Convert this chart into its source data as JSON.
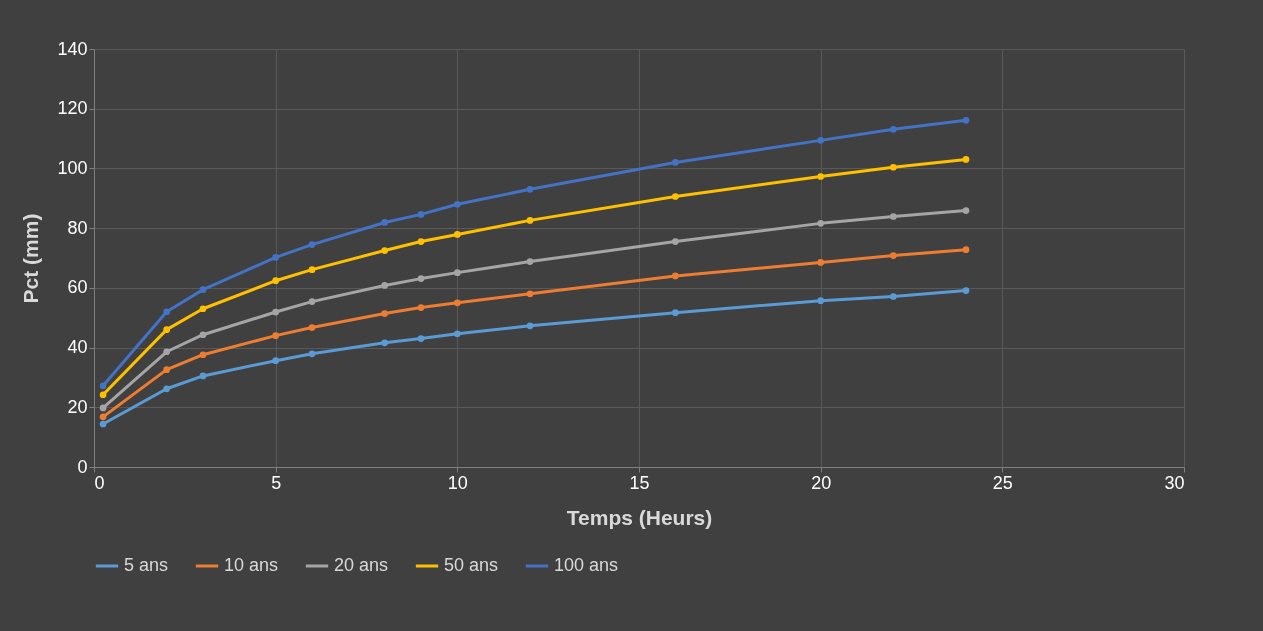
{
  "chart_data": {
    "type": "line",
    "xlabel": "Temps (Heurs)",
    "ylabel": "Pct (mm)",
    "x": [
      0.25,
      2,
      3,
      5,
      6,
      8,
      9,
      10,
      12,
      16,
      20,
      22,
      24
    ],
    "series": [
      {
        "name": "5 ans",
        "color": "#5b9bd5",
        "values": [
          14.4,
          26.2,
          30.5,
          35.6,
          37.9,
          41.6,
          43,
          44.6,
          47.3,
          51.7,
          55.7,
          57.1,
          59.1
        ]
      },
      {
        "name": "10 ans",
        "color": "#ed7d31",
        "values": [
          16.8,
          32.6,
          37.6,
          44,
          46.7,
          51.4,
          53.4,
          55,
          58,
          64,
          68.5,
          70.8,
          72.8
        ]
      },
      {
        "name": "20 ans",
        "color": "#a5a5a5",
        "values": [
          19.8,
          38.6,
          44.3,
          51.9,
          55.4,
          60.8,
          63.1,
          65.1,
          68.8,
          75.5,
          81.6,
          83.9,
          85.9
        ]
      },
      {
        "name": "50 ans",
        "color": "#ffc000",
        "values": [
          24.2,
          46,
          53,
          62.4,
          66.1,
          72.5,
          75.5,
          77.9,
          82.6,
          90.6,
          97.3,
          100.4,
          103
        ]
      },
      {
        "name": "100 ans",
        "color": "#4472c4",
        "values": [
          27.2,
          52,
          59.4,
          70.2,
          74.5,
          81.9,
          84.6,
          88,
          93,
          102,
          109.4,
          113.1,
          116.1
        ]
      }
    ],
    "xlim": [
      0,
      30
    ],
    "xticks": [
      0,
      5,
      10,
      15,
      20,
      25,
      30
    ],
    "ylim": [
      0,
      140
    ],
    "yticks": [
      0,
      20,
      40,
      60,
      80,
      100,
      120,
      140
    ],
    "grid": true,
    "legend": "bottom",
    "marker": "circle",
    "line_style": "solid"
  }
}
